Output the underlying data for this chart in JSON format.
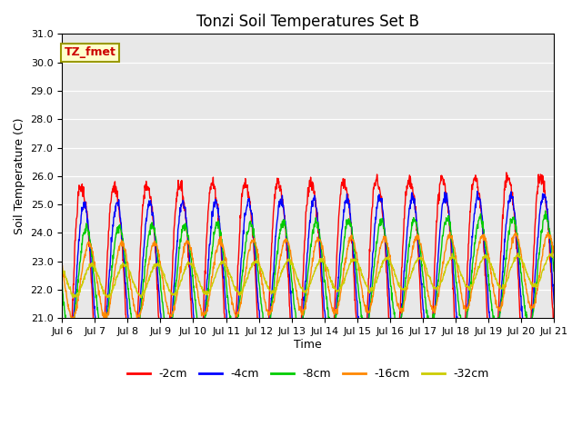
{
  "title": "Tonzi Soil Temperatures Set B",
  "xlabel": "Time",
  "ylabel": "Soil Temperature (C)",
  "ylim": [
    21.0,
    31.0
  ],
  "yticks": [
    21.0,
    22.0,
    23.0,
    24.0,
    25.0,
    26.0,
    27.0,
    28.0,
    29.0,
    30.0,
    31.0
  ],
  "xtick_labels": [
    "Jul 6",
    "Jul 7",
    "Jul 8",
    "Jul 9",
    "Jul 10",
    "Jul 11",
    "Jul 12",
    "Jul 13",
    "Jul 14",
    "Jul 15",
    "Jul 16",
    "Jul 17",
    "Jul 18",
    "Jul 19",
    "Jul 20",
    "Jul 21"
  ],
  "series_colors": [
    "#ff0000",
    "#0000ff",
    "#00cc00",
    "#ff8800",
    "#cccc00"
  ],
  "series_labels": [
    "-2cm",
    "-4cm",
    "-8cm",
    "-16cm",
    "-32cm"
  ],
  "line_width": 1.0,
  "bg_color": "#e8e8e8",
  "annotation_text": "TZ_fmet",
  "annotation_color": "#cc0000",
  "annotation_bg": "#ffffcc",
  "annotation_edge": "#999900",
  "n_days": 15,
  "pts_per_day": 96,
  "base_temp": 22.3,
  "trend": 0.025
}
